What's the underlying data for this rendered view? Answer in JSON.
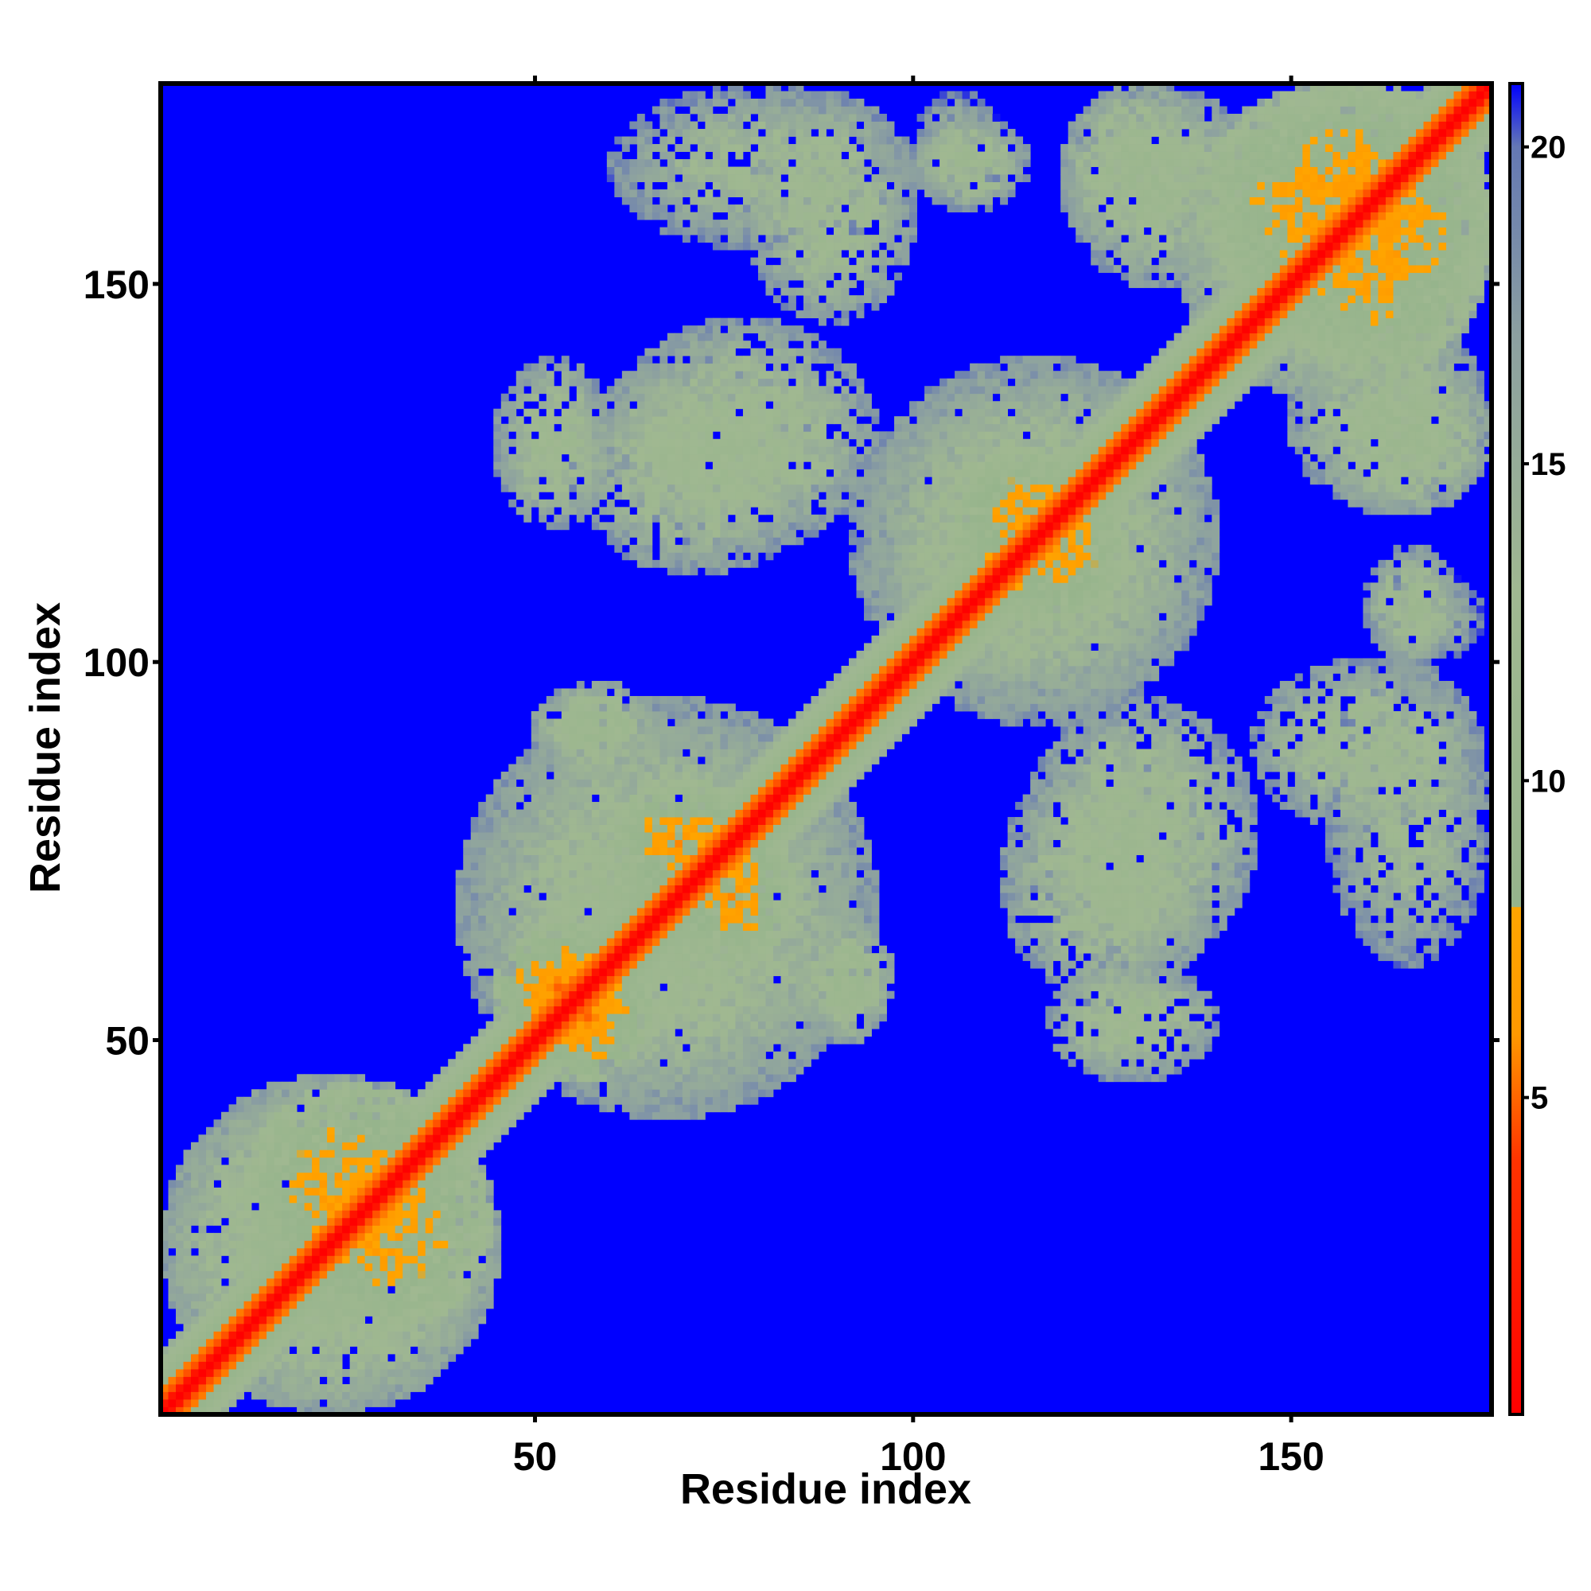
{
  "chart_data": {
    "type": "heatmap",
    "title": "",
    "xlabel": "Residue index",
    "ylabel": "Residue index",
    "n_residues": 176,
    "xlim": [
      1,
      176
    ],
    "ylim": [
      1,
      176
    ],
    "x_ticks": [
      50,
      100,
      150
    ],
    "y_ticks": [
      50,
      100,
      150
    ],
    "colorbar": {
      "ticks": [
        5,
        10,
        15,
        20
      ],
      "range": [
        0,
        21
      ],
      "palette": [
        {
          "value": 0,
          "color": "#ff0000"
        },
        {
          "value": 4,
          "color": "#ff3300"
        },
        {
          "value": 6,
          "color": "#ff9900"
        },
        {
          "value": 8,
          "color": "#ffa500"
        },
        {
          "value": 8.01,
          "color": "#96b48c"
        },
        {
          "value": 13,
          "color": "#a0b891"
        },
        {
          "value": 17,
          "color": "#8ca0a0"
        },
        {
          "value": 20,
          "color": "#6478b4"
        },
        {
          "value": 21,
          "color": "#0000ff"
        }
      ]
    },
    "matrix_description": "Symmetric residue-residue distance map; distance 0 on the diagonal, beyond 21 shown as background blue",
    "diagonal_distance": 0,
    "background_distance": 21,
    "contact_regions": [
      {
        "res_a": [
          1,
          45
        ],
        "res_b": [
          1,
          45
        ],
        "distance": 11
      },
      {
        "res_a": [
          12,
          40
        ],
        "res_b": [
          16,
          44
        ],
        "distance": 7
      },
      {
        "res_a": [
          40,
          95
        ],
        "res_b": [
          40,
          95
        ],
        "distance": 12
      },
      {
        "res_a": [
          60,
          80
        ],
        "res_b": [
          68,
          84
        ],
        "distance": 7
      },
      {
        "res_a": [
          45,
          63
        ],
        "res_b": [
          47,
          65
        ],
        "distance": 6
      },
      {
        "res_a": [
          85,
          97
        ],
        "res_b": [
          50,
          66
        ],
        "distance": 11
      },
      {
        "res_a": [
          93,
          140
        ],
        "res_b": [
          92,
          140
        ],
        "distance": 12
      },
      {
        "res_a": [
          105,
          125
        ],
        "res_b": [
          108,
          128
        ],
        "distance": 7
      },
      {
        "res_a": [
          112,
          140
        ],
        "res_b": [
          55,
          88
        ],
        "distance": 12
      },
      {
        "res_a": [
          135,
          176
        ],
        "res_b": [
          135,
          176
        ],
        "distance": 11
      },
      {
        "res_a": [
          138,
          176
        ],
        "res_b": [
          145,
          176
        ],
        "distance": 7
      },
      {
        "res_a": [
          45,
          60
        ],
        "res_b": [
          118,
          140
        ],
        "distance": 12
      },
      {
        "res_a": [
          60,
          95
        ],
        "res_b": [
          115,
          145
        ],
        "distance": 12
      },
      {
        "res_a": [
          78,
          100
        ],
        "res_b": [
          145,
          175
        ],
        "distance": 12
      },
      {
        "res_a": [
          100,
          115
        ],
        "res_b": [
          160,
          172
        ],
        "distance": 12
      },
      {
        "res_a": [
          120,
          140
        ],
        "res_b": [
          155,
          176
        ],
        "distance": 11
      },
      {
        "res_a": [
          150,
          176
        ],
        "res_b": [
          120,
          145
        ],
        "distance": 12
      },
      {
        "res_a": [
          155,
          176
        ],
        "res_b": [
          60,
          100
        ],
        "distance": 13
      },
      {
        "res_a": [
          160,
          175
        ],
        "res_b": [
          100,
          112
        ],
        "distance": 14
      }
    ]
  }
}
